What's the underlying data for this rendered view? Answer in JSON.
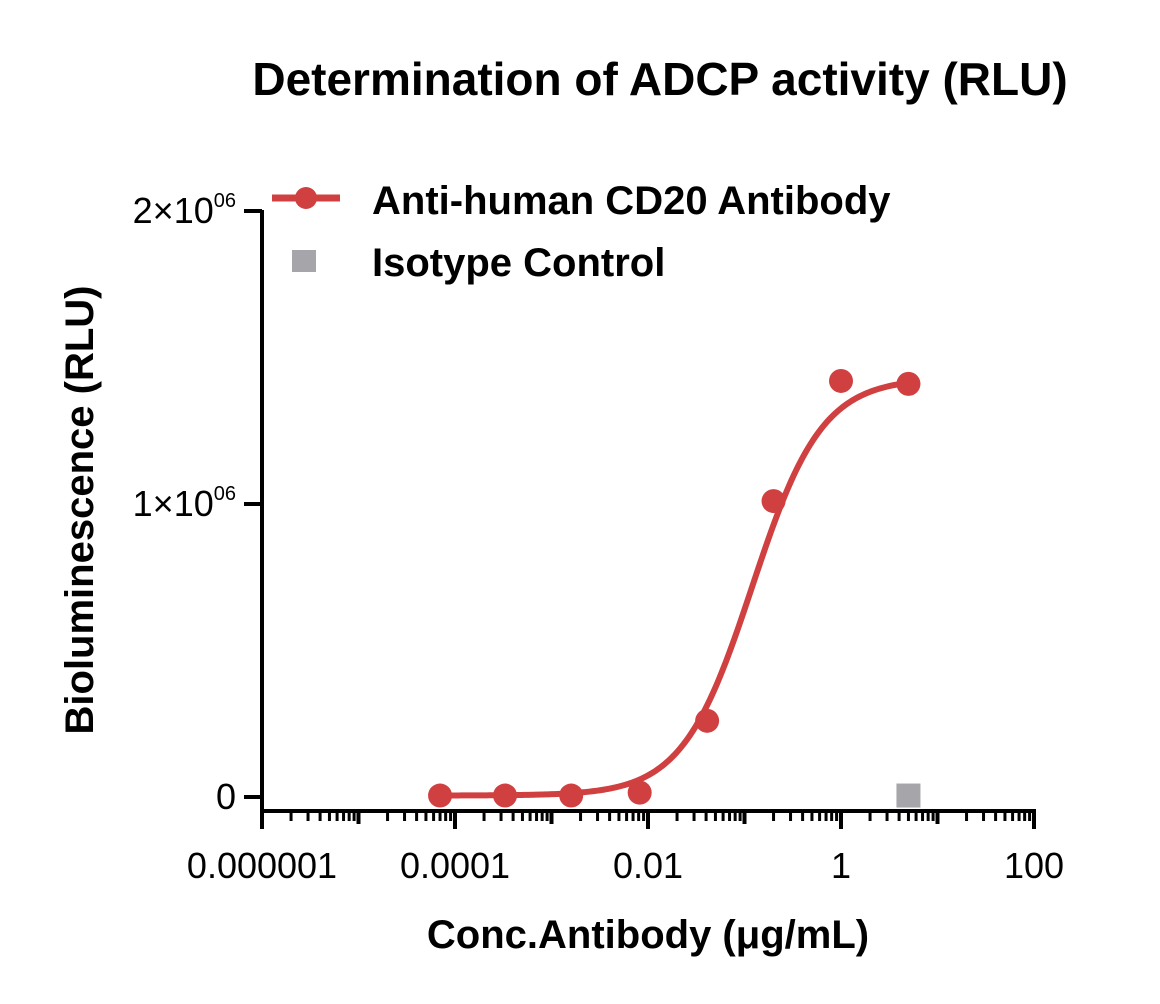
{
  "chart_data": {
    "type": "scatter",
    "title": "Determination of ADCP activity (RLU)",
    "xlabel": "Conc.Antibody (μg/mL)",
    "ylabel": "Bioluminescence (RLU)",
    "xscale": "log",
    "xlim": [
      1e-06,
      100
    ],
    "ylim": [
      0,
      2000000
    ],
    "x_tick_labels": [
      "0.000001",
      "0.0001",
      "0.01",
      "1",
      "100"
    ],
    "y_ticks": [
      {
        "mantissa": "0",
        "times": "",
        "exponent": ""
      },
      {
        "mantissa": "1",
        "times": "×",
        "exponent": "06"
      },
      {
        "mantissa": "2",
        "times": "×",
        "exponent": "06"
      }
    ],
    "legend_position": "top-left",
    "grid": false,
    "series": [
      {
        "name": "Anti-human CD20 Antibody",
        "color": "#d04040",
        "marker": "circle",
        "fit_curve": "4PL",
        "x": [
          7e-05,
          0.00033,
          0.0016,
          0.0082,
          0.041,
          0.2,
          1.0,
          5.0
        ],
        "y": [
          5000,
          5000,
          5000,
          15000,
          260000,
          1010000,
          1420000,
          1410000
        ]
      },
      {
        "name": "Isotype Control",
        "color": "#a6a6aa",
        "marker": "square",
        "x": [
          5.0
        ],
        "y": [
          5000
        ]
      }
    ]
  }
}
